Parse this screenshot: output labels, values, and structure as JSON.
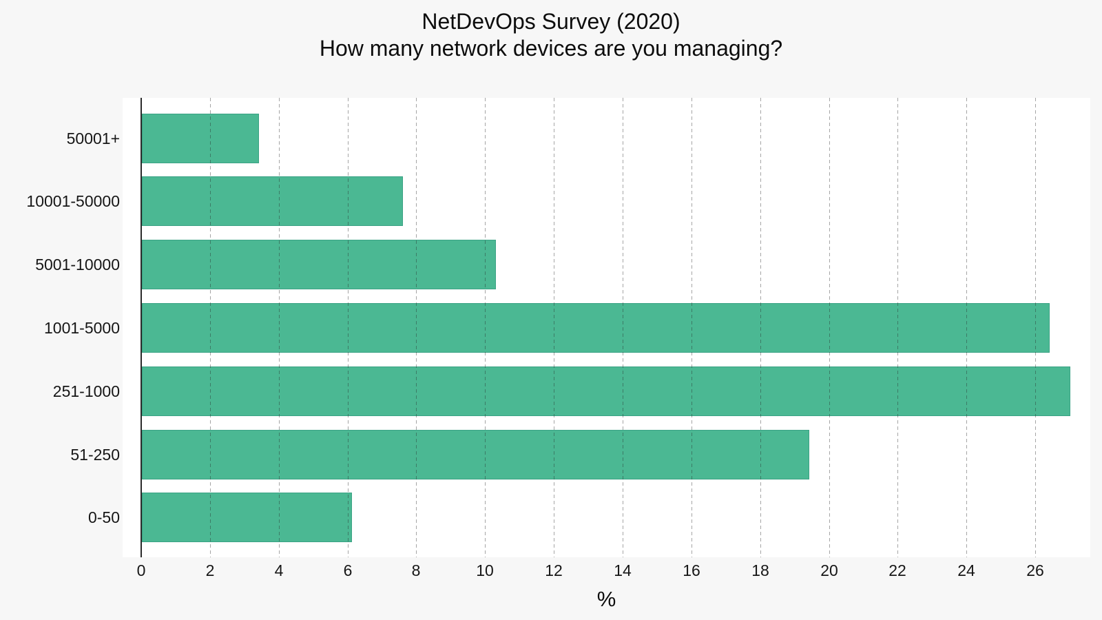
{
  "title": {
    "line1": "NetDevOps Survey (2020)",
    "line2": "How many network devices are you managing?"
  },
  "chart_data": {
    "type": "bar",
    "orientation": "horizontal",
    "title": "NetDevOps Survey (2020)\nHow many network devices are you managing?",
    "categories_top_to_bottom": [
      "50001+",
      "10001-50000",
      "5001-10000",
      "1001-5000",
      "251-1000",
      "51-250",
      "0-50"
    ],
    "values": [
      3.4,
      7.6,
      10.3,
      26.4,
      27.0,
      19.4,
      6.1
    ],
    "xlabel": "%",
    "ylabel": "",
    "x_ticks": [
      0,
      2,
      4,
      6,
      8,
      10,
      12,
      14,
      16,
      18,
      20,
      22,
      24,
      26
    ],
    "xlim": [
      0,
      27.6
    ],
    "grid": "vertical-dashed-over-bars",
    "legend": "none",
    "colors": {
      "bar_fill": "#4BB893",
      "bar_edge": "#3AA284",
      "figure_background": "#F7F7F7",
      "plot_background": "#FFFFFF",
      "gridline": "rgba(40,40,40,0.42)",
      "spine": "#2A2A2A",
      "text": "#0D0D0D"
    }
  }
}
